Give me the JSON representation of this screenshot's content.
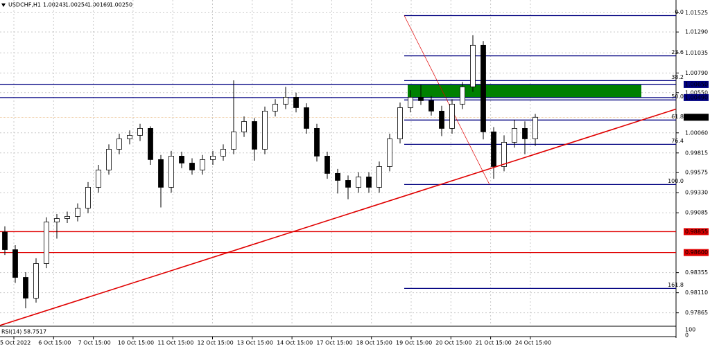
{
  "chart_data": {
    "type": "candlestick",
    "symbol": "USDCHF,H1",
    "quote": [
      "1.00243",
      "1.00254",
      "1.00169",
      "1.00250"
    ],
    "categories": [
      "5 Oct 2022",
      "6 Oct 15:00",
      "7 Oct 15:00",
      "10 Oct 15:00",
      "11 Oct 15:00",
      "12 Oct 15:00",
      "13 Oct 15:00",
      "14 Oct 15:00",
      "17 Oct 15:00",
      "18 Oct 15:00",
      "19 Oct 15:00",
      "20 Oct 15:00",
      "21 Oct 15:00",
      "24 Oct 15:00"
    ],
    "open": [
      0.9885,
      0.98635,
      0.98297,
      0.98044,
      0.98466,
      0.98973,
      0.99015,
      0.99041,
      0.99142,
      0.99396,
      0.99607,
      0.9986,
      0.99987,
      1.00029,
      1.00114,
      0.99734,
      0.99396,
      0.99776,
      0.99691,
      0.99607,
      0.99734,
      0.99776,
      0.9986,
      1.00072,
      1.00198,
      0.9986,
      1.00325,
      1.0041,
      1.00494,
      1.00367,
      1.00114,
      0.99776,
      0.99565,
      0.9948,
      0.99396,
      0.99522,
      0.99396,
      0.99649,
      0.99987,
      1.00367,
      1.00494,
      1.00452,
      1.00325,
      1.00114,
      1.0041,
      1.00621,
      1.01128,
      1.00072,
      0.99649,
      0.99945,
      1.00114,
      0.99987
    ],
    "high": [
      0.9892,
      0.9869,
      0.9836,
      0.9853,
      0.9903,
      0.9907,
      0.991,
      0.992,
      0.9946,
      0.9967,
      0.9992,
      1.0005,
      1.0009,
      1.0017,
      1.0014,
      0.9979,
      0.9984,
      0.9983,
      0.9975,
      0.9979,
      0.9984,
      0.9992,
      1.007,
      1.0026,
      1.0024,
      1.0038,
      1.0047,
      1.0062,
      1.0055,
      1.0042,
      1.0017,
      0.9983,
      0.9962,
      0.9954,
      0.9958,
      0.9958,
      0.9971,
      1.0005,
      1.0043,
      1.0058,
      1.0065,
      1.0051,
      1.0039,
      1.0047,
      1.0068,
      1.0125,
      1.0118,
      1.0013,
      1.0003,
      1.0022,
      1.002,
      1.0029
    ],
    "low": [
      0.9857,
      0.9823,
      0.9792,
      0.9799,
      0.9841,
      0.9877,
      0.9896,
      0.9898,
      0.9908,
      0.9933,
      0.9955,
      0.998,
      0.9992,
      0.9996,
      0.9967,
      0.9915,
      0.9933,
      0.9963,
      0.9955,
      0.9955,
      0.9967,
      0.9972,
      0.998,
      1.0001,
      0.9972,
      0.998,
      1.0026,
      1.0035,
      1.0031,
      1.0005,
      0.9971,
      0.995,
      0.9932,
      0.9925,
      0.9933,
      0.9933,
      0.9933,
      0.9959,
      0.9993,
      1.0031,
      1.004,
      1.0027,
      1.0002,
      1.0005,
      1.0035,
      1.0056,
      0.9998,
      0.995,
      0.9959,
      0.9988,
      0.998,
      0.999
    ],
    "close": [
      0.98635,
      0.98297,
      0.98044,
      0.98466,
      0.98973,
      0.99015,
      0.99041,
      0.99142,
      0.99396,
      0.99607,
      0.9986,
      0.99987,
      1.00029,
      1.00114,
      0.99734,
      0.99396,
      0.99776,
      0.99691,
      0.99607,
      0.99734,
      0.99776,
      0.9986,
      1.00072,
      1.00198,
      0.9986,
      1.00325,
      1.0041,
      1.00494,
      1.00367,
      1.00114,
      0.99776,
      0.99565,
      0.9948,
      0.99396,
      0.99522,
      0.99396,
      0.99649,
      0.99987,
      1.00367,
      1.00494,
      1.00452,
      1.00325,
      1.00114,
      1.0041,
      1.00621,
      1.01128,
      1.00072,
      0.99649,
      0.99945,
      1.00114,
      0.99987,
      1.0025
    ],
    "up_color": "#ffffff",
    "down_color": "#000000",
    "ylim": [
      0.9771,
      1.0168
    ],
    "yticks": [
      1.01525,
      {
        "value": 1.0129,
        "label": "1.01290"
      },
      1.01035,
      {
        "value": 1.0079,
        "label": "1.00790"
      },
      {
        "value": 1.0055,
        "label": "1.00550"
      },
      {
        "value": 1.0006,
        "label": "1.00060"
      },
      0.99815,
      0.99575,
      {
        "value": 0.9933,
        "label": "0.99330"
      },
      0.99085,
      0.98355,
      {
        "value": 0.9811,
        "label": "0.98110"
      },
      0.97865
    ],
    "grid": true,
    "price_lines": [
      {
        "value": 1.0065,
        "label": "1.00650",
        "color": "#000080"
      },
      {
        "value": 1.0049,
        "label": "1.00490",
        "color": "#000080"
      },
      {
        "value": 0.98855,
        "label": "0.98855",
        "color": "#e00000"
      },
      {
        "value": 0.986,
        "label": "0.98600",
        "color": "#e00000"
      }
    ],
    "bid": {
      "value": 1.0025,
      "label": "1.00250"
    },
    "zone_color": "#008000",
    "trendline": {
      "from": 0.9773,
      "to": 0.998,
      "color": "#e00000"
    },
    "fibonacci": {
      "color": "#000080",
      "levels": [
        {
          "label": "0.0",
          "value": 1.0149
        },
        {
          "label": "23.6",
          "value": 1.00999
        },
        {
          "label": "38.2",
          "value": 1.00697
        },
        {
          "label": "50.0",
          "value": 1.00461
        },
        {
          "label": "61.8",
          "value": 1.00216
        },
        {
          "label": "76.4",
          "value": 0.9992
        },
        {
          "label": "100.0",
          "value": 0.9943
        },
        {
          "label": "161.8",
          "value": 0.98163
        }
      ]
    },
    "indicator": {
      "label": "RSI(14) 58.7517",
      "scale": [
        "100",
        "0"
      ]
    }
  }
}
